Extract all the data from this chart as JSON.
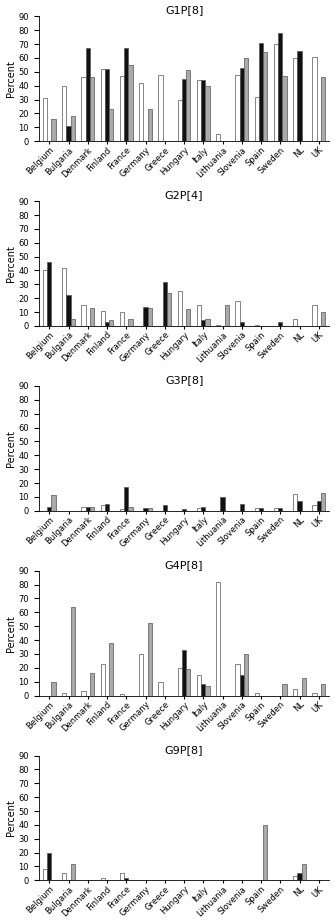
{
  "countries": [
    "Belgium",
    "Bulgaria",
    "Denmark",
    "Finland",
    "France",
    "Germany",
    "Greece",
    "Hungary",
    "Italy",
    "Lithuania",
    "Slovenia",
    "Spain",
    "Sweden",
    "NL",
    "UK"
  ],
  "charts": [
    {
      "title": "G1P[8]",
      "season1": [
        31,
        40,
        46,
        52,
        47,
        42,
        48,
        30,
        44,
        5,
        48,
        32,
        70,
        60,
        61
      ],
      "season2": [
        0,
        11,
        67,
        52,
        67,
        0,
        0,
        45,
        44,
        0,
        53,
        71,
        78,
        65,
        0
      ],
      "season3": [
        16,
        18,
        46,
        23,
        55,
        23,
        0,
        51,
        40,
        0,
        60,
        64,
        47,
        0,
        46
      ]
    },
    {
      "title": "G2P[4]",
      "season1": [
        40,
        42,
        15,
        11,
        10,
        0,
        0,
        25,
        15,
        1,
        18,
        1,
        0,
        5,
        15
      ],
      "season2": [
        46,
        22,
        0,
        3,
        0,
        14,
        32,
        0,
        4,
        0,
        3,
        0,
        3,
        0,
        0
      ],
      "season3": [
        0,
        5,
        13,
        4,
        5,
        13,
        24,
        12,
        5,
        15,
        0,
        0,
        0,
        0,
        10
      ]
    },
    {
      "title": "G3P[8]",
      "season1": [
        0,
        0,
        3,
        4,
        1,
        0,
        0,
        0,
        2,
        0,
        0,
        2,
        2,
        12,
        4
      ],
      "season2": [
        3,
        0,
        3,
        5,
        17,
        2,
        4,
        1,
        3,
        10,
        5,
        2,
        2,
        7,
        7
      ],
      "season3": [
        11,
        0,
        3,
        0,
        3,
        2,
        0,
        0,
        0,
        0,
        0,
        0,
        0,
        0,
        13
      ]
    },
    {
      "title": "G4P[8]",
      "season1": [
        0,
        2,
        3,
        23,
        1,
        30,
        10,
        20,
        15,
        82,
        23,
        2,
        0,
        5,
        2
      ],
      "season2": [
        0,
        0,
        0,
        0,
        0,
        0,
        0,
        33,
        8,
        0,
        15,
        0,
        0,
        0,
        0
      ],
      "season3": [
        10,
        64,
        16,
        38,
        0,
        52,
        0,
        19,
        7,
        0,
        30,
        0,
        8,
        13,
        8
      ]
    },
    {
      "title": "G9P[8]",
      "season1": [
        8,
        5,
        0,
        2,
        5,
        0,
        0,
        0,
        0,
        0,
        0,
        0,
        0,
        3,
        0
      ],
      "season2": [
        20,
        0,
        0,
        0,
        2,
        0,
        0,
        0,
        0,
        0,
        0,
        0,
        0,
        5,
        0
      ],
      "season3": [
        0,
        12,
        0,
        0,
        0,
        0,
        0,
        0,
        0,
        0,
        0,
        40,
        0,
        12,
        0
      ]
    }
  ],
  "colors": {
    "season1": "#ffffff",
    "season2": "#111111",
    "season3": "#aaaaaa"
  },
  "edge_color": "#555555",
  "ylabel": "Percent",
  "ylim": [
    0,
    90
  ],
  "yticks": [
    0,
    10,
    20,
    30,
    40,
    50,
    60,
    70,
    80,
    90
  ]
}
